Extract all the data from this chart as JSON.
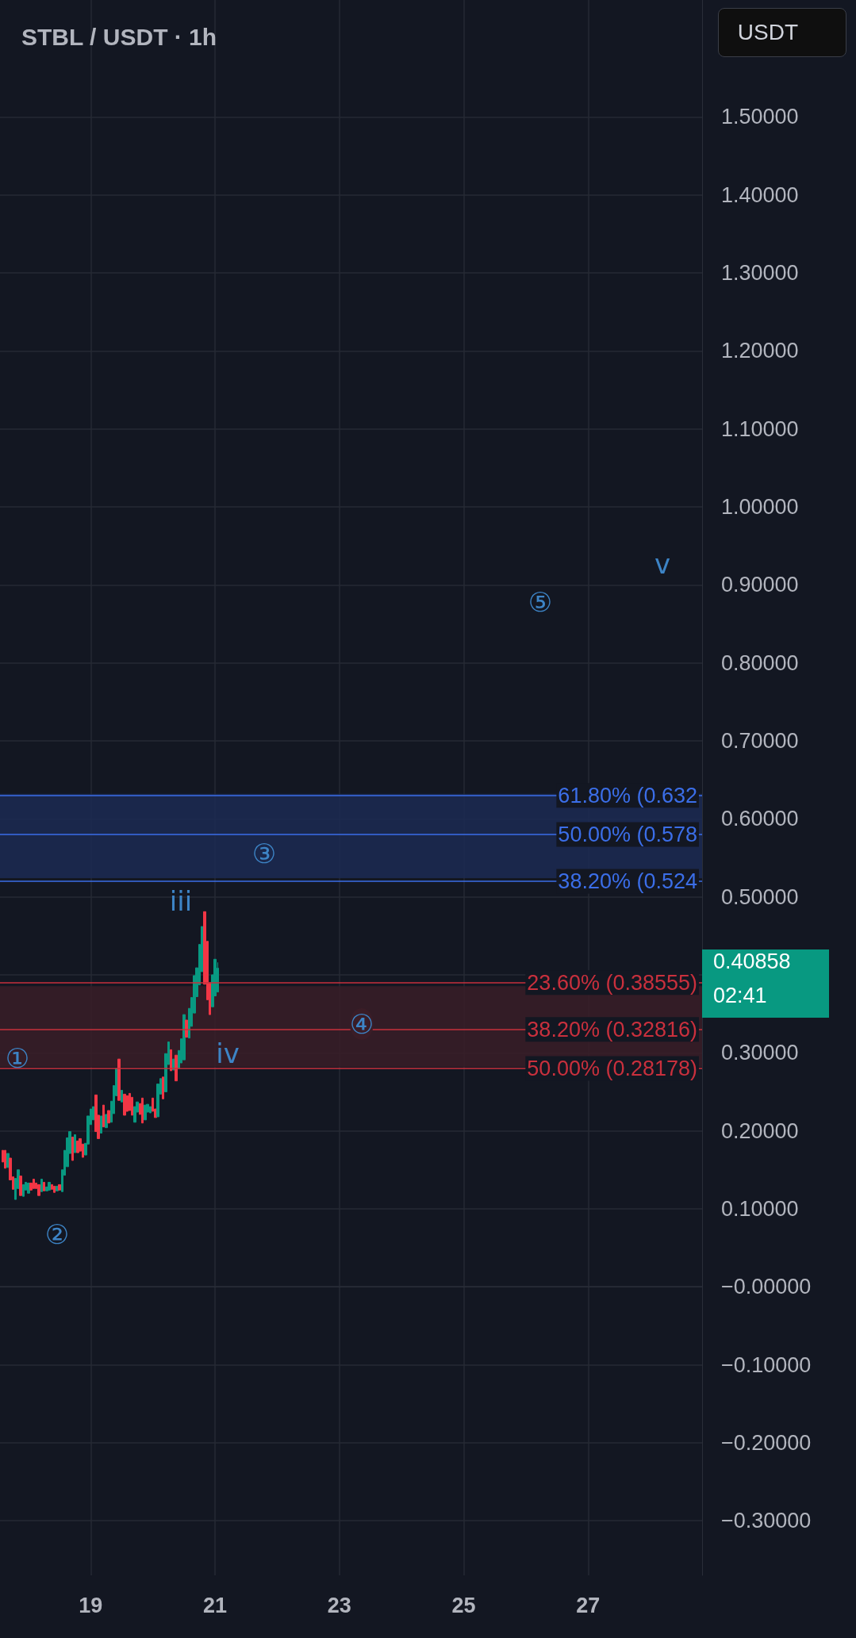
{
  "chart_data": {
    "type": "candlestick",
    "title": "STBL / USDT · 1h",
    "x": [
      "--09-17T14:00",
      "--09-17T15:00",
      "--09-17T16:00",
      "--09-17T17:00",
      "--09-17T18:00",
      "--09-17T19:00",
      "--09-17T20:00",
      "--09-17T21:00",
      "--09-17T22:00",
      "--09-17T23:00",
      "--09-18T00:00",
      "--09-18T01:00",
      "--09-18T02:00",
      "--09-18T03:00",
      "--09-18T04:00",
      "--09-18T05:00",
      "--09-18T06:00",
      "--09-18T07:00",
      "--09-18T08:00",
      "--09-18T09:00",
      "--09-18T10:00",
      "--09-18T11:00",
      "--09-18T12:00",
      "--09-18T13:00",
      "--09-18T14:00",
      "--09-18T15:00",
      "--09-18T16:00",
      "--09-18T17:00",
      "--09-18T18:00",
      "--09-18T19:00",
      "--09-18T20:00",
      "--09-18T21:00",
      "--09-18T22:00",
      "--09-18T23:00",
      "--09-19T00:00",
      "--09-19T01:00",
      "--09-19T02:00",
      "--09-19T03:00",
      "--09-19T04:00",
      "--09-19T05:00",
      "--09-19T06:00",
      "--09-19T07:00",
      "--09-19T08:00",
      "--09-19T09:00",
      "--09-19T10:00",
      "--09-19T11:00",
      "--09-19T12:00",
      "--09-19T13:00",
      "--09-19T14:00",
      "--09-19T15:00",
      "--09-19T16:00",
      "--09-19T17:00",
      "--09-19T18:00",
      "--09-19T19:00",
      "--09-19T20:00",
      "--09-19T21:00",
      "--09-19T22:00",
      "--09-19T23:00",
      "--09-20T00:00",
      "--09-20T01:00",
      "--09-20T02:00",
      "--09-20T03:00",
      "--09-20T04:00",
      "--09-20T05:00",
      "--09-20T06:00",
      "--09-20T07:00",
      "--09-20T08:00",
      "--09-20T09:00",
      "--09-20T10:00",
      "--09-20T11:00",
      "--09-20T12:00",
      "--09-20T13:00",
      "--09-20T14:00",
      "--09-20T15:00",
      "--09-20T16:00",
      "--09-20T17:00",
      "--09-20T18:00",
      "--09-20T19:00",
      "--09-20T20:00",
      "--09-20T21:00",
      "--09-20T22:00",
      "--09-20T23:00",
      "--09-21T00:00",
      "--09-21T01:00"
    ],
    "ohlc": [
      [
        0.175,
        0.175,
        0.16,
        0.16
      ],
      [
        0.175,
        0.175,
        0.152,
        0.152
      ],
      [
        0.153,
        0.171,
        0.153,
        0.171
      ],
      [
        0.165,
        0.165,
        0.137,
        0.137
      ],
      [
        0.141,
        0.141,
        0.125,
        0.125
      ],
      [
        0.112,
        0.139,
        0.112,
        0.139
      ],
      [
        0.126,
        0.15,
        0.126,
        0.15
      ],
      [
        0.142,
        0.142,
        0.117,
        0.117
      ],
      [
        0.116,
        0.131,
        0.116,
        0.131
      ],
      [
        0.124,
        0.134,
        0.124,
        0.134
      ],
      [
        0.12,
        0.133,
        0.12,
        0.133
      ],
      [
        0.133,
        0.133,
        0.124,
        0.124
      ],
      [
        0.138,
        0.138,
        0.126,
        0.126
      ],
      [
        0.133,
        0.133,
        0.126,
        0.126
      ],
      [
        0.131,
        0.131,
        0.117,
        0.117
      ],
      [
        0.122,
        0.138,
        0.122,
        0.138
      ],
      [
        0.134,
        0.134,
        0.123,
        0.123
      ],
      [
        0.123,
        0.128,
        0.123,
        0.128
      ],
      [
        0.124,
        0.134,
        0.124,
        0.134
      ],
      [
        0.131,
        0.131,
        0.125,
        0.125
      ],
      [
        0.129,
        0.129,
        0.121,
        0.121
      ],
      [
        0.123,
        0.129,
        0.123,
        0.129
      ],
      [
        0.131,
        0.131,
        0.124,
        0.124
      ],
      [
        0.122,
        0.15,
        0.122,
        0.15
      ],
      [
        0.143,
        0.175,
        0.143,
        0.175
      ],
      [
        0.154,
        0.191,
        0.154,
        0.191
      ],
      [
        0.171,
        0.199,
        0.171,
        0.199
      ],
      [
        0.192,
        0.192,
        0.162,
        0.162
      ],
      [
        0.172,
        0.195,
        0.172,
        0.195
      ],
      [
        0.187,
        0.187,
        0.172,
        0.172
      ],
      [
        0.19,
        0.19,
        0.174,
        0.174
      ],
      [
        0.183,
        0.183,
        0.166,
        0.166
      ],
      [
        0.169,
        0.184,
        0.169,
        0.184
      ],
      [
        0.183,
        0.219,
        0.183,
        0.219
      ],
      [
        0.208,
        0.228,
        0.208,
        0.228
      ],
      [
        0.214,
        0.231,
        0.214,
        0.231
      ],
      [
        0.246,
        0.246,
        0.199,
        0.199
      ],
      [
        0.22,
        0.22,
        0.19,
        0.19
      ],
      [
        0.197,
        0.219,
        0.197,
        0.219
      ],
      [
        0.233,
        0.233,
        0.205,
        0.205
      ],
      [
        0.204,
        0.221,
        0.204,
        0.221
      ],
      [
        0.226,
        0.226,
        0.21,
        0.21
      ],
      [
        0.211,
        0.238,
        0.211,
        0.238
      ],
      [
        0.222,
        0.258,
        0.222,
        0.258
      ],
      [
        0.245,
        0.28,
        0.245,
        0.28
      ],
      [
        0.292,
        0.292,
        0.239,
        0.239
      ],
      [
        0.237,
        0.252,
        0.237,
        0.252
      ],
      [
        0.247,
        0.247,
        0.22,
        0.22
      ],
      [
        0.245,
        0.245,
        0.225,
        0.225
      ],
      [
        0.248,
        0.248,
        0.226,
        0.226
      ],
      [
        0.243,
        0.243,
        0.22,
        0.22
      ],
      [
        0.211,
        0.231,
        0.211,
        0.231
      ],
      [
        0.224,
        0.237,
        0.224,
        0.237
      ],
      [
        0.235,
        0.235,
        0.221,
        0.221
      ],
      [
        0.242,
        0.242,
        0.21,
        0.21
      ],
      [
        0.214,
        0.233,
        0.214,
        0.233
      ],
      [
        0.224,
        0.234,
        0.224,
        0.234
      ],
      [
        0.223,
        0.231,
        0.223,
        0.231
      ],
      [
        0.242,
        0.242,
        0.225,
        0.225
      ],
      [
        0.228,
        0.228,
        0.217,
        0.217
      ],
      [
        0.218,
        0.26,
        0.218,
        0.26
      ],
      [
        0.247,
        0.267,
        0.247,
        0.267
      ],
      [
        0.269,
        0.269,
        0.241,
        0.241
      ],
      [
        0.25,
        0.299,
        0.25,
        0.299
      ],
      [
        0.285,
        0.314,
        0.285,
        0.314
      ],
      [
        0.304,
        0.304,
        0.277,
        0.277
      ],
      [
        0.278,
        0.292,
        0.278,
        0.292
      ],
      [
        0.297,
        0.297,
        0.264,
        0.264
      ],
      [
        0.28,
        0.303,
        0.28,
        0.303
      ],
      [
        0.287,
        0.318,
        0.287,
        0.318
      ],
      [
        0.291,
        0.349,
        0.291,
        0.349
      ],
      [
        0.342,
        0.342,
        0.32,
        0.32
      ],
      [
        0.319,
        0.357,
        0.319,
        0.357
      ],
      [
        0.334,
        0.371,
        0.334,
        0.371
      ],
      [
        0.351,
        0.399,
        0.351,
        0.399
      ],
      [
        0.372,
        0.409,
        0.372,
        0.409
      ],
      [
        0.387,
        0.439,
        0.387,
        0.439
      ],
      [
        0.404,
        0.462,
        0.404,
        0.462
      ],
      [
        0.481,
        0.481,
        0.388,
        0.388
      ],
      [
        0.443,
        0.443,
        0.368,
        0.368
      ],
      [
        0.39,
        0.39,
        0.349,
        0.349
      ],
      [
        0.359,
        0.4,
        0.359,
        0.4
      ],
      [
        0.373,
        0.42,
        0.373,
        0.42
      ],
      [
        0.378,
        0.416,
        0.378,
        0.40858
      ]
    ],
    "xlim": [
      "--09-17T13:00",
      "--09-28T20:00"
    ],
    "xticks": [
      {
        "value": "--09-19",
        "label": "19"
      },
      {
        "value": "--09-21",
        "label": "21"
      },
      {
        "value": "--09-23",
        "label": "23"
      },
      {
        "value": "--09-25",
        "label": "25"
      },
      {
        "value": "--09-27",
        "label": "27"
      }
    ],
    "ylim": [
      -0.37,
      1.65
    ],
    "yticks": [
      {
        "value": -0.3,
        "label": "−0.30000"
      },
      {
        "value": -0.2,
        "label": "−0.20000"
      },
      {
        "value": -0.1,
        "label": "−0.10000"
      },
      {
        "value": 0,
        "label": "−0.00000"
      },
      {
        "value": 0.1,
        "label": "0.10000"
      },
      {
        "value": 0.2,
        "label": "0.20000"
      },
      {
        "value": 0.3,
        "label": "0.30000"
      },
      {
        "value": 0.4,
        "label": null
      },
      {
        "value": 0.5,
        "label": "0.50000"
      },
      {
        "value": 0.6,
        "label": "0.60000"
      },
      {
        "value": 0.7,
        "label": "0.70000"
      },
      {
        "value": 0.8,
        "label": "0.80000"
      },
      {
        "value": 0.9,
        "label": "0.90000"
      },
      {
        "value": 1.0,
        "label": "1.00000"
      },
      {
        "value": 1.1,
        "label": "1.10000"
      },
      {
        "value": 1.2,
        "label": "1.20000"
      },
      {
        "value": 1.3,
        "label": "1.30000"
      },
      {
        "value": 1.4,
        "label": "1.40000"
      },
      {
        "value": 1.5,
        "label": "1.50000"
      }
    ],
    "grid": true,
    "bands": [
      {
        "axis": "y",
        "from": 0.524,
        "to": 0.632,
        "color": "#1c2a52"
      },
      {
        "axis": "y",
        "from": 0.28178,
        "to": 0.38555,
        "color": "#3a1d27"
      }
    ],
    "ref_lines": [
      {
        "axis": "y",
        "value": 0.632,
        "label": "61.80% (0.632",
        "color": "#3b6ee8"
      },
      {
        "axis": "y",
        "value": 0.578,
        "label": "50.00% (0.578",
        "color": "#3b6ee8"
      },
      {
        "axis": "y",
        "value": 0.524,
        "label": "38.20% (0.524",
        "color": "#3b6ee8"
      },
      {
        "axis": "y",
        "value": 0.38555,
        "label": "23.60% (0.38555)",
        "color": "#c9303d"
      },
      {
        "axis": "y",
        "value": 0.32816,
        "label": "38.20% (0.32816)",
        "color": "#c9303d"
      },
      {
        "axis": "y",
        "value": 0.28178,
        "label": "50.00% (0.28178)",
        "color": "#c9303d"
      }
    ],
    "annotations": [
      "①",
      "②",
      "iii",
      "iv",
      "③",
      "④",
      "⑤",
      "v",
      "0.40858",
      "02:41",
      "USDT"
    ]
  }
}
